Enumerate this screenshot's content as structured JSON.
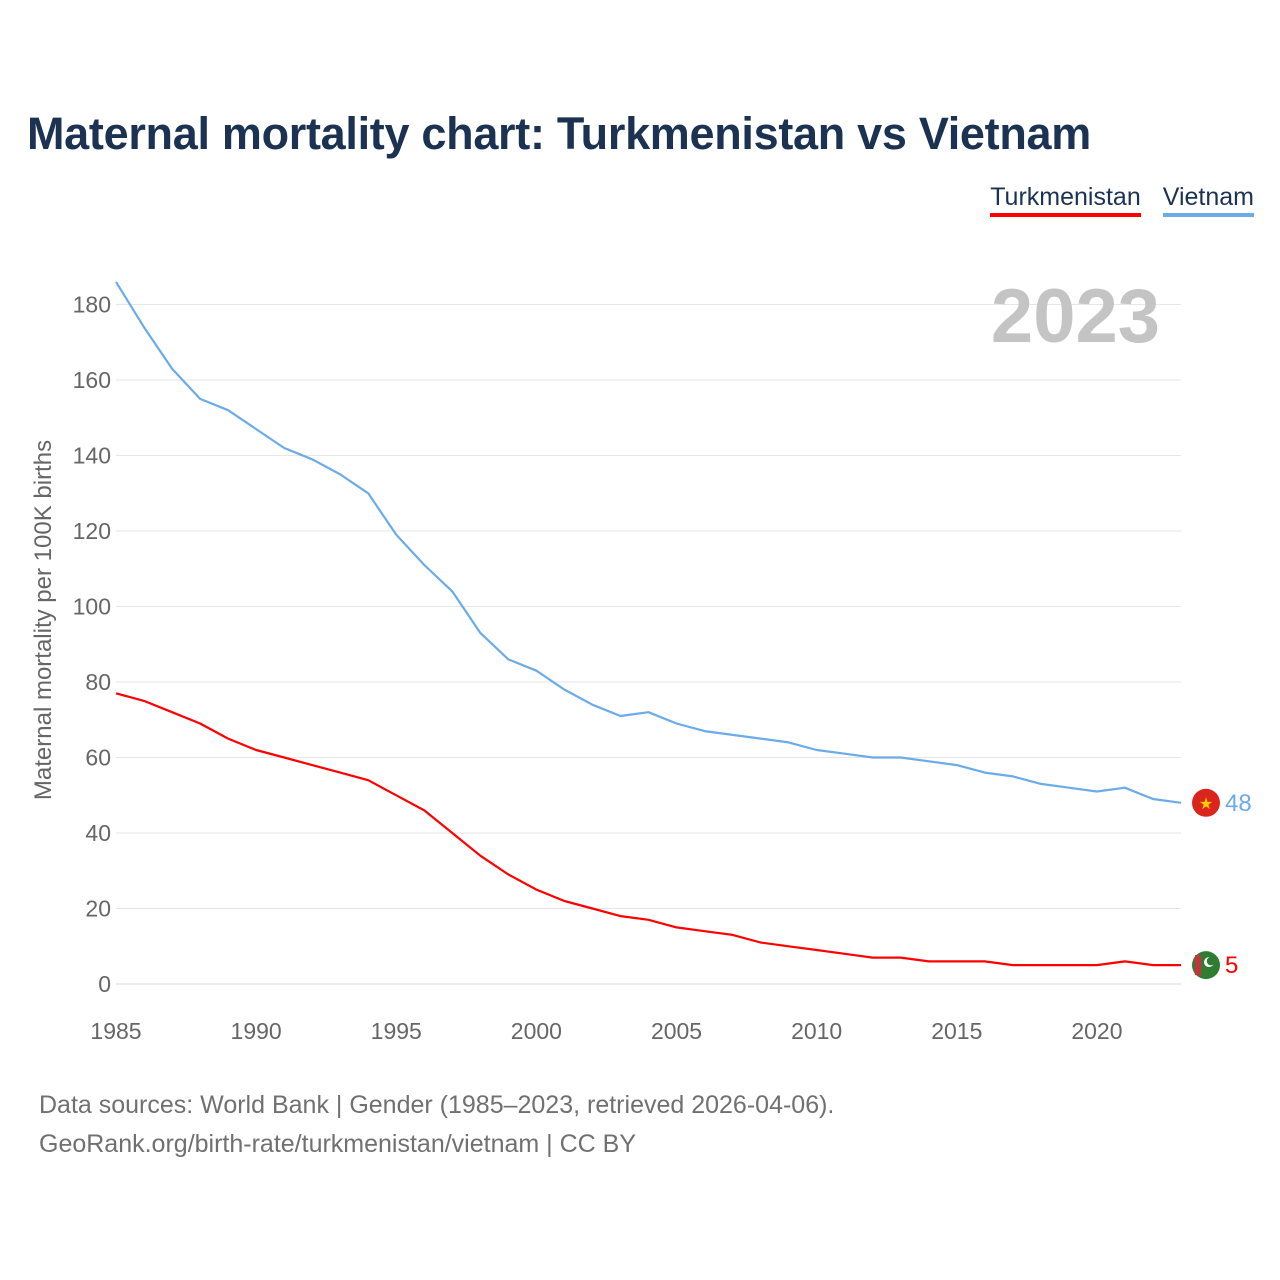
{
  "title": "Maternal mortality chart: Turkmenistan vs Vietnam",
  "legend": [
    {
      "name": "Turkmenistan",
      "color": "#ff0000"
    },
    {
      "name": "Vietnam",
      "color": "#6aabe8"
    }
  ],
  "year_label": "2023",
  "source": {
    "line1": "Data sources: World Bank | Gender (1985–2023, retrieved 2026-04-06).",
    "line2": "GeoRank.org/birth-rate/turkmenistan/vietnam | CC BY"
  },
  "chart_data": {
    "type": "line",
    "title": "Maternal mortality chart: Turkmenistan vs Vietnam",
    "xlabel": "",
    "ylabel": "Maternal mortality per 100K births",
    "xlim": [
      1985,
      2023
    ],
    "ylim": [
      0,
      190
    ],
    "xticks": [
      1985,
      1990,
      1995,
      2000,
      2005,
      2010,
      2015,
      2020
    ],
    "yticks": [
      0,
      20,
      40,
      60,
      80,
      100,
      120,
      140,
      160,
      180
    ],
    "x": [
      1985,
      1986,
      1987,
      1988,
      1989,
      1990,
      1991,
      1992,
      1993,
      1994,
      1995,
      1996,
      1997,
      1998,
      1999,
      2000,
      2001,
      2002,
      2003,
      2004,
      2005,
      2006,
      2007,
      2008,
      2009,
      2010,
      2011,
      2012,
      2013,
      2014,
      2015,
      2016,
      2017,
      2018,
      2019,
      2020,
      2021,
      2022,
      2023
    ],
    "series": [
      {
        "name": "Vietnam",
        "color": "#6aabe8",
        "end_label": "48",
        "flag": "vietnam-flag-icon",
        "values": [
          186,
          174,
          163,
          155,
          152,
          147,
          142,
          139,
          135,
          130,
          119,
          111,
          104,
          93,
          86,
          83,
          78,
          74,
          71,
          72,
          69,
          67,
          66,
          65,
          64,
          62,
          61,
          60,
          60,
          59,
          58,
          56,
          55,
          53,
          52,
          51,
          52,
          49,
          48
        ]
      },
      {
        "name": "Turkmenistan",
        "color": "#ff0000",
        "end_label": "5",
        "flag": "turkmenistan-flag-icon",
        "values": [
          77,
          75,
          72,
          69,
          65,
          62,
          60,
          58,
          56,
          54,
          50,
          46,
          40,
          34,
          29,
          25,
          22,
          20,
          18,
          17,
          15,
          14,
          13,
          11,
          10,
          9,
          8,
          7,
          7,
          6,
          6,
          6,
          5,
          5,
          5,
          5,
          6,
          5,
          5
        ]
      }
    ]
  }
}
